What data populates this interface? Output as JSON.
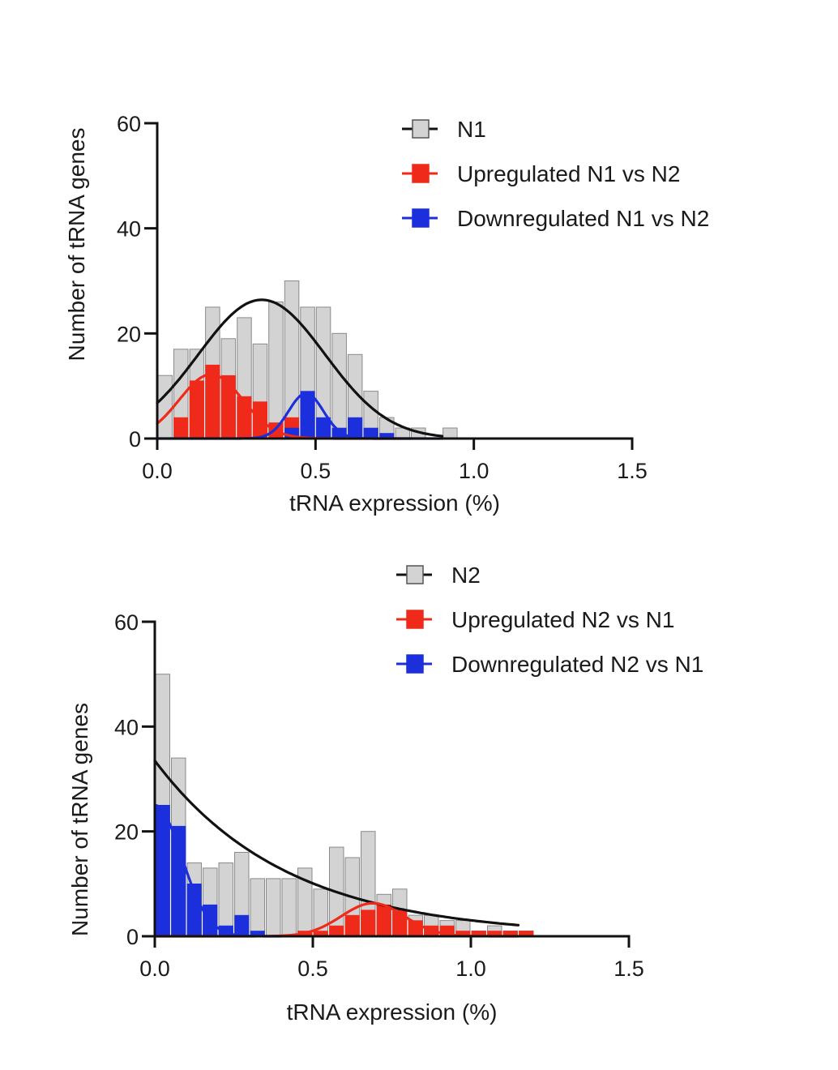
{
  "chart_data": [
    {
      "type": "histogram",
      "xlabel": "tRNA expression (%)",
      "ylabel": "Number of tRNA genes",
      "xlim": [
        0,
        1.5
      ],
      "ylim": [
        0,
        60
      ],
      "xticks": [
        "0.0",
        "0.5",
        "1.0",
        "1.5"
      ],
      "yticks": [
        "0",
        "20",
        "40",
        "60"
      ],
      "bin_width": 0.05,
      "legend": [
        "N1",
        "Upregulated N1 vs N2",
        "Downregulated N1 vs N2"
      ],
      "series": [
        {
          "name": "N1",
          "color": "#d3d3d3",
          "fit_color": "#111111",
          "bin_starts": [
            0.0,
            0.05,
            0.1,
            0.15,
            0.2,
            0.25,
            0.3,
            0.35,
            0.4,
            0.45,
            0.5,
            0.55,
            0.6,
            0.65,
            0.7,
            0.75,
            0.8,
            0.85,
            0.9
          ],
          "values": [
            12,
            17,
            17,
            25,
            19,
            23,
            18,
            26,
            30,
            25,
            25,
            20,
            16,
            9,
            4,
            2,
            2,
            0,
            2
          ],
          "fit": {
            "model": "gaussian",
            "amplitude": 26.4,
            "mean": 0.33,
            "sd": 0.2,
            "x_range": [
              0.0,
              0.9
            ]
          }
        },
        {
          "name": "Upregulated N1 vs N2",
          "color": "#f02a1a",
          "fit_color": "#f02a1a",
          "bin_starts": [
            0.0,
            0.05,
            0.1,
            0.15,
            0.2,
            0.25,
            0.3,
            0.35,
            0.4,
            0.45,
            0.5,
            0.55,
            0.6,
            0.65,
            0.7,
            0.75,
            0.8,
            0.85,
            0.9
          ],
          "values": [
            0,
            4,
            11,
            14,
            12,
            8,
            7,
            3,
            4,
            0,
            0,
            0,
            0,
            0,
            0,
            0,
            0,
            0,
            0
          ],
          "fit": {
            "model": "gaussian",
            "amplitude": 12.2,
            "mean": 0.17,
            "sd": 0.1,
            "x_range": [
              0.0,
              0.8
            ]
          }
        },
        {
          "name": "Downregulated N1 vs N2",
          "color": "#1c2fdd",
          "fit_color": "#1c2fdd",
          "bin_starts": [
            0.0,
            0.05,
            0.1,
            0.15,
            0.2,
            0.25,
            0.3,
            0.35,
            0.4,
            0.45,
            0.5,
            0.55,
            0.6,
            0.65,
            0.7,
            0.75,
            0.8,
            0.85,
            0.9
          ],
          "values": [
            0,
            0,
            0,
            0,
            0,
            0,
            0,
            0,
            2,
            9,
            4,
            2,
            4,
            2,
            1,
            0,
            0,
            0,
            0
          ],
          "fit": {
            "model": "gaussian",
            "amplitude": 8.6,
            "mean": 0.47,
            "sd": 0.055,
            "x_range": [
              0.0,
              0.9
            ]
          }
        }
      ]
    },
    {
      "type": "histogram",
      "xlabel": "tRNA expression (%)",
      "ylabel": "Number of tRNA genes",
      "xlim": [
        0,
        1.5
      ],
      "ylim": [
        0,
        60
      ],
      "xticks": [
        "0.0",
        "0.5",
        "1.0",
        "1.5"
      ],
      "yticks": [
        "0",
        "20",
        "40",
        "60"
      ],
      "bin_width": 0.05,
      "legend": [
        "N2",
        "Upregulated N2 vs N1",
        "Downregulated N2 vs N1"
      ],
      "series": [
        {
          "name": "N2",
          "color": "#d3d3d3",
          "fit_color": "#111111",
          "bin_starts": [
            0.0,
            0.05,
            0.1,
            0.15,
            0.2,
            0.25,
            0.3,
            0.35,
            0.4,
            0.45,
            0.5,
            0.55,
            0.6,
            0.65,
            0.7,
            0.75,
            0.8,
            0.85,
            0.9,
            0.95,
            1.0,
            1.05,
            1.1,
            1.15
          ],
          "values": [
            50,
            34,
            14,
            13,
            14,
            16,
            11,
            11,
            11,
            13,
            9,
            17,
            15,
            20,
            8,
            9,
            4,
            4,
            3,
            3,
            1,
            2,
            1,
            1
          ],
          "fit": {
            "model": "exponential_decay",
            "amplitude": 33.5,
            "rate": 2.4,
            "x_range": [
              0.0,
              1.15
            ]
          }
        },
        {
          "name": "Upregulated N2 vs N1",
          "color": "#f02a1a",
          "fit_color": "#f02a1a",
          "bin_starts": [
            0.0,
            0.05,
            0.1,
            0.15,
            0.2,
            0.25,
            0.3,
            0.35,
            0.4,
            0.45,
            0.5,
            0.55,
            0.6,
            0.65,
            0.7,
            0.75,
            0.8,
            0.85,
            0.9,
            0.95,
            1.0,
            1.05,
            1.1,
            1.15
          ],
          "values": [
            0,
            0,
            0,
            0,
            0,
            0,
            0,
            0,
            0,
            1,
            1,
            2,
            4,
            5,
            6,
            5,
            3,
            2,
            2,
            1,
            1,
            1,
            1,
            1
          ],
          "fit": {
            "model": "gaussian",
            "amplitude": 6.3,
            "mean": 0.69,
            "sd": 0.1,
            "x_range": [
              0.0,
              1.15
            ]
          }
        },
        {
          "name": "Downregulated N2 vs N1",
          "color": "#1c2fdd",
          "fit_color": "#1c2fdd",
          "bin_starts": [
            0.0,
            0.05,
            0.1,
            0.15,
            0.2,
            0.25,
            0.3,
            0.35,
            0.4,
            0.45,
            0.5,
            0.55,
            0.6,
            0.65,
            0.7,
            0.75,
            0.8,
            0.85,
            0.9,
            0.95,
            1.0,
            1.05,
            1.1,
            1.15
          ],
          "values": [
            25,
            21,
            10,
            6,
            2,
            4,
            1,
            0,
            0,
            0,
            0,
            0,
            0,
            0,
            0,
            0,
            0,
            0,
            0,
            0,
            0,
            0,
            0,
            0
          ],
          "fit": {
            "model": "gaussian",
            "amplitude": 25,
            "mean": 0.0,
            "sd": 0.085,
            "x_range": [
              0.0,
              0.4
            ]
          }
        }
      ]
    }
  ]
}
